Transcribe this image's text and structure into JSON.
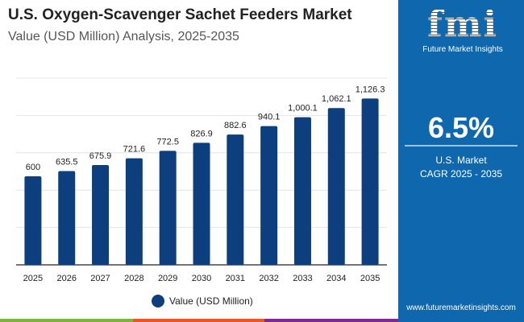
{
  "header": {
    "title": "U.S. Oxygen-Scavenger Sachet Feeders Market",
    "subtitle": "Value (USD Million) Analysis, 2025-2035"
  },
  "chart_data": {
    "type": "bar",
    "categories": [
      "2025",
      "2026",
      "2027",
      "2028",
      "2029",
      "2030",
      "2031",
      "2032",
      "2033",
      "2034",
      "2035"
    ],
    "series": [
      {
        "name": "Value (USD Million)",
        "values": [
          600,
          635.5,
          675.9,
          721.6,
          772.5,
          826.9,
          882.6,
          940.1,
          1000.1,
          1062.1,
          1126.3
        ]
      }
    ],
    "data_labels": [
      "600",
      "635.5",
      "675.9",
      "721.6",
      "772.5",
      "826.9",
      "882.6",
      "940.1",
      "1,000.1",
      "1,062.1",
      "1,126.3"
    ],
    "ylim": [
      0,
      1265
    ],
    "grid": true,
    "legend": "bottom",
    "bar_color": "#0d3f7e"
  },
  "legend": {
    "label": "Value (USD Million)"
  },
  "panel": {
    "brand": "fmi",
    "brand_name": "Future Market Insights",
    "cagr_value": "6.5%",
    "cagr_line1": "U.S. Market",
    "cagr_line2": "CAGR 2025 - 2035",
    "url": "www.futuremarketinsights.com",
    "bg_color": "#0f68ad"
  },
  "strip_colors": [
    "#7cb342",
    "#e8572a",
    "#7b2d8e"
  ]
}
